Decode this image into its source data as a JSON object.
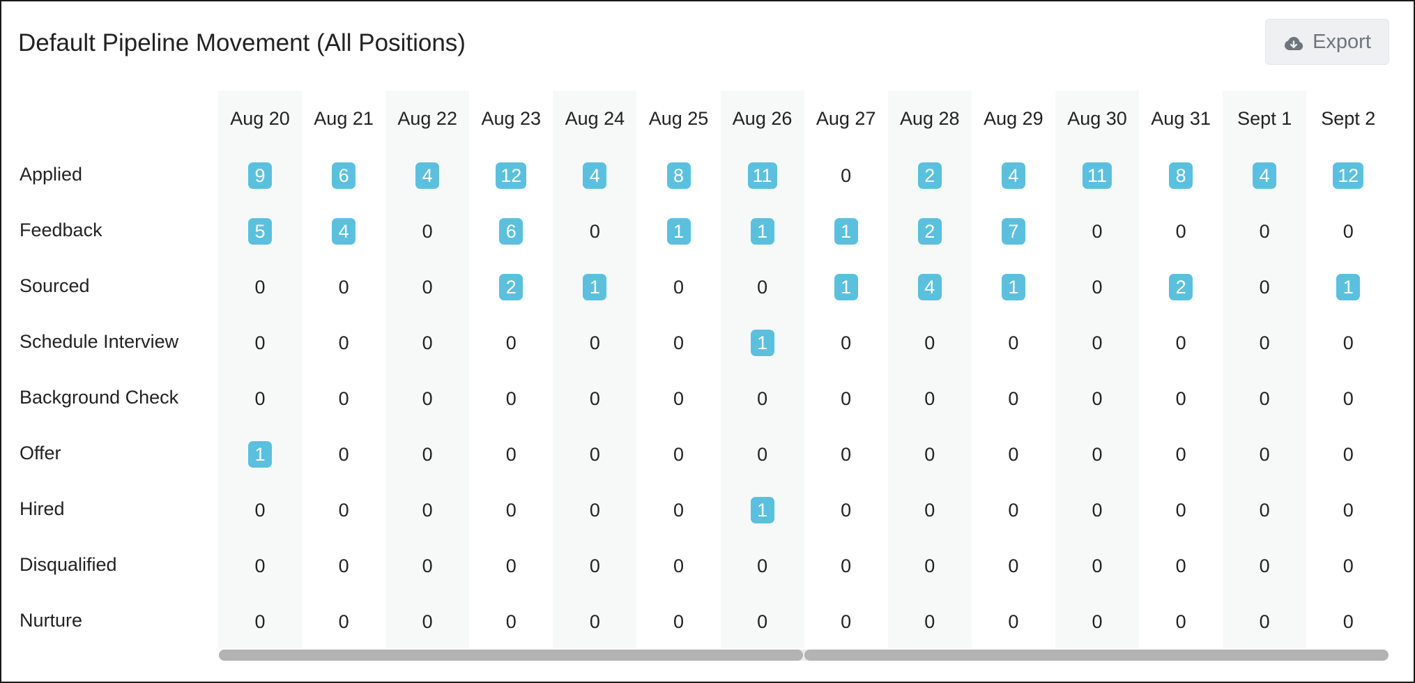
{
  "title": "Default Pipeline Movement (All Positions)",
  "export_label": "Export",
  "columns": [
    "Aug 20",
    "Aug 21",
    "Aug 22",
    "Aug 23",
    "Aug 24",
    "Aug 25",
    "Aug 26",
    "Aug 27",
    "Aug 28",
    "Aug 29",
    "Aug 30",
    "Aug 31",
    "Sept 1",
    "Sept 2"
  ],
  "rows": [
    {
      "label": "Applied",
      "values": [
        9,
        6,
        4,
        12,
        4,
        8,
        11,
        0,
        2,
        4,
        11,
        8,
        4,
        12
      ]
    },
    {
      "label": "Feedback",
      "values": [
        5,
        4,
        0,
        6,
        0,
        1,
        1,
        1,
        2,
        7,
        0,
        0,
        0,
        0
      ]
    },
    {
      "label": "Sourced",
      "values": [
        0,
        0,
        0,
        2,
        1,
        0,
        0,
        1,
        4,
        1,
        0,
        2,
        0,
        1
      ]
    },
    {
      "label": "Schedule Interview",
      "values": [
        0,
        0,
        0,
        0,
        0,
        0,
        1,
        0,
        0,
        0,
        0,
        0,
        0,
        0
      ]
    },
    {
      "label": "Background Check",
      "values": [
        0,
        0,
        0,
        0,
        0,
        0,
        0,
        0,
        0,
        0,
        0,
        0,
        0,
        0
      ]
    },
    {
      "label": "Offer",
      "values": [
        1,
        0,
        0,
        0,
        0,
        0,
        0,
        0,
        0,
        0,
        0,
        0,
        0,
        0
      ]
    },
    {
      "label": "Hired",
      "values": [
        0,
        0,
        0,
        0,
        0,
        0,
        1,
        0,
        0,
        0,
        0,
        0,
        0,
        0
      ]
    },
    {
      "label": "Disqualified",
      "values": [
        0,
        0,
        0,
        0,
        0,
        0,
        0,
        0,
        0,
        0,
        0,
        0,
        0,
        0
      ]
    },
    {
      "label": "Nurture",
      "values": [
        0,
        0,
        0,
        0,
        0,
        0,
        0,
        0,
        0,
        0,
        0,
        0,
        0,
        0
      ]
    }
  ],
  "colors": {
    "badge": "#5bc0de",
    "stripe": "#f7f9f9"
  },
  "icons": {
    "export": "cloud-download-icon"
  }
}
